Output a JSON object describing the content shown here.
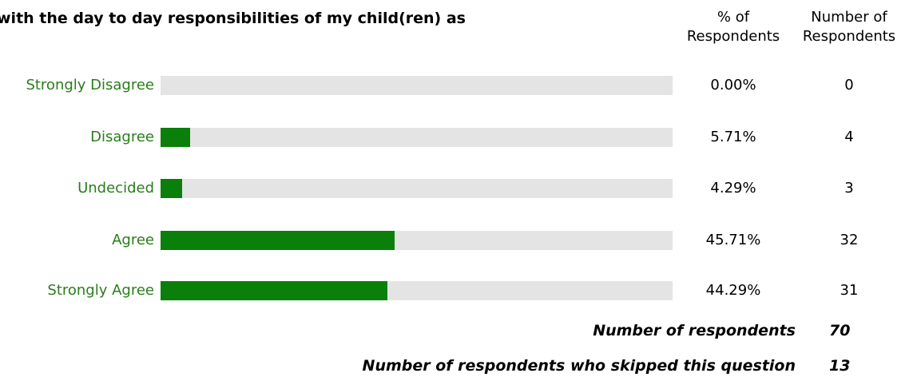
{
  "title": "with the day to day responsibilities of my child(ren) as",
  "columns": {
    "percent_header_line1": "% of",
    "percent_header_line2": "Respondents",
    "count_header_line1": "Number of",
    "count_header_line2": "Respondents"
  },
  "colors": {
    "label": "#2a7d1a",
    "bar_fill": "#0a7f0a",
    "bar_track": "#e4e4e4"
  },
  "chart_data": {
    "type": "bar",
    "orientation": "horizontal",
    "categories": [
      "Strongly Disagree",
      "Disagree",
      "Undecided",
      "Agree",
      "Strongly Agree"
    ],
    "percent_labels": [
      "0.00%",
      "5.71%",
      "4.29%",
      "45.71%",
      "44.29%"
    ],
    "values": [
      0.0,
      5.71,
      4.29,
      45.71,
      44.29
    ],
    "counts": [
      "0",
      "4",
      "3",
      "32",
      "31"
    ],
    "xlim": [
      0,
      100
    ],
    "grid": false,
    "legend": "none"
  },
  "summary": {
    "respondents_label": "Number of respondents",
    "respondents_value": "70",
    "skipped_label": "Number of respondents who skipped this question",
    "skipped_value": "13"
  }
}
